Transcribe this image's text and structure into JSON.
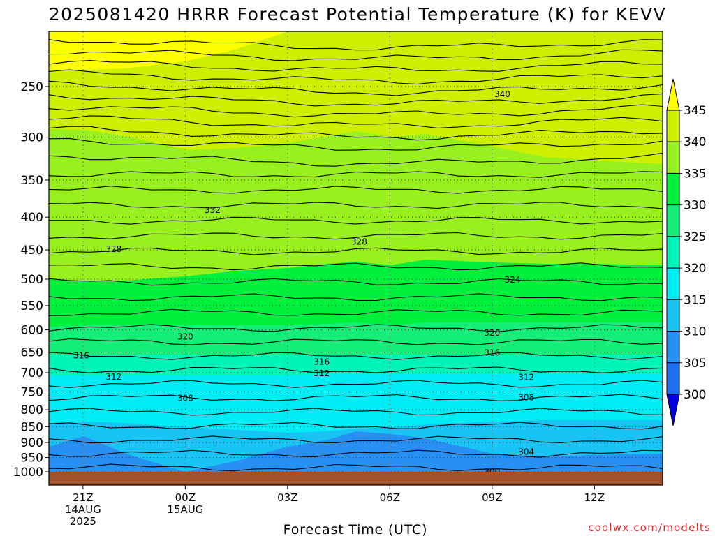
{
  "chart_data": {
    "type": "heatmap",
    "title": "2025081420 HRRR Forecast Potential Temperature (K) for KEVV",
    "xlabel": "Forecast Time (UTC)",
    "ylabel": "",
    "credit": "coolwx.com/modelts",
    "x_ticks": [
      {
        "lines": [
          "21Z",
          "14AUG",
          "2025"
        ],
        "hour": 1
      },
      {
        "lines": [
          "00Z",
          "15AUG"
        ],
        "hour": 4
      },
      {
        "lines": [
          "03Z"
        ],
        "hour": 7
      },
      {
        "lines": [
          "06Z"
        ],
        "hour": 10
      },
      {
        "lines": [
          "09Z"
        ],
        "hour": 13
      },
      {
        "lines": [
          "12Z"
        ],
        "hour": 16
      }
    ],
    "x_range_hours": [
      0,
      18
    ],
    "y_ticks": [
      250,
      300,
      350,
      400,
      450,
      500,
      550,
      600,
      650,
      700,
      750,
      800,
      850,
      900,
      950,
      1000
    ],
    "y_range_hpa": [
      200,
      1000
    ],
    "y_scale": "log (pressure)",
    "grid": "dotted",
    "colorbar": {
      "labels": [
        "345",
        "340",
        "335",
        "330",
        "325",
        "320",
        "315",
        "310",
        "305",
        "300"
      ],
      "levels": [
        300,
        305,
        310,
        315,
        320,
        325,
        330,
        335,
        340,
        345
      ],
      "colors": [
        "#1450ec",
        "#1e6ef0",
        "#2890f2",
        "#19c4f4",
        "#00ecf4",
        "#00f4b8",
        "#14ee78",
        "#00f03c",
        "#98f01e",
        "#ccf000",
        "#ffff00"
      ],
      "extend": "both",
      "placement": "right"
    },
    "ground_color": "#a0522d",
    "contour_interval": 2,
    "contour_labels": [
      {
        "value": "340",
        "hour": 13.3,
        "p": 257
      },
      {
        "value": "332",
        "hour": 4.8,
        "p": 390
      },
      {
        "value": "328",
        "hour": 1.9,
        "p": 449
      },
      {
        "value": "328",
        "hour": 9.1,
        "p": 437
      },
      {
        "value": "324",
        "hour": 13.6,
        "p": 501
      },
      {
        "value": "320",
        "hour": 4.0,
        "p": 615
      },
      {
        "value": "320",
        "hour": 13.0,
        "p": 607
      },
      {
        "value": "316",
        "hour": 0.95,
        "p": 658
      },
      {
        "value": "316",
        "hour": 8.0,
        "p": 673
      },
      {
        "value": "316",
        "hour": 13.0,
        "p": 652
      },
      {
        "value": "312",
        "hour": 1.9,
        "p": 711
      },
      {
        "value": "312",
        "hour": 8.0,
        "p": 702
      },
      {
        "value": "312",
        "hour": 14.0,
        "p": 712
      },
      {
        "value": "308",
        "hour": 4.0,
        "p": 767
      },
      {
        "value": "308",
        "hour": 14.0,
        "p": 765
      },
      {
        "value": "304",
        "hour": 14.0,
        "p": 931
      },
      {
        "value": "300",
        "hour": 13.0,
        "p": 1000
      }
    ]
  }
}
